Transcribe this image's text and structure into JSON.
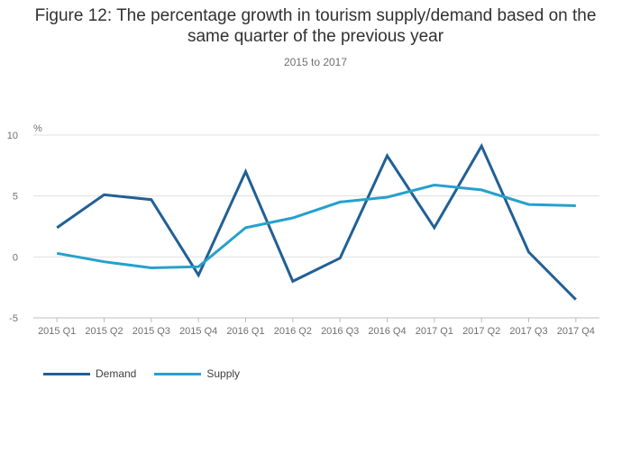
{
  "chart_data": {
    "type": "line",
    "title": "Figure 12: The percentage growth in tourism supply/demand based on the same quarter of the previous year",
    "subtitle": "2015 to 2017",
    "ylabel": "%",
    "xlabel": "",
    "ylim": [
      -5,
      10
    ],
    "yticks": [
      -5,
      0,
      5,
      10
    ],
    "grid": true,
    "legend_position": "bottom-left",
    "categories": [
      "2015 Q1",
      "2015 Q2",
      "2015 Q3",
      "2015 Q4",
      "2016 Q1",
      "2016 Q2",
      "2016 Q3",
      "2016 Q4",
      "2017 Q1",
      "2017 Q2",
      "2017 Q3",
      "2017 Q4"
    ],
    "series": [
      {
        "name": "Demand",
        "color": "#206095",
        "values": [
          2.4,
          5.1,
          4.7,
          -1.5,
          7.0,
          -2.0,
          -0.1,
          8.3,
          2.4,
          9.1,
          0.4,
          -3.5
        ]
      },
      {
        "name": "Supply",
        "color": "#27a0cc",
        "values": [
          0.3,
          -0.4,
          -0.9,
          -0.8,
          2.4,
          3.2,
          4.5,
          4.9,
          5.9,
          5.5,
          4.3,
          4.2
        ]
      }
    ]
  }
}
